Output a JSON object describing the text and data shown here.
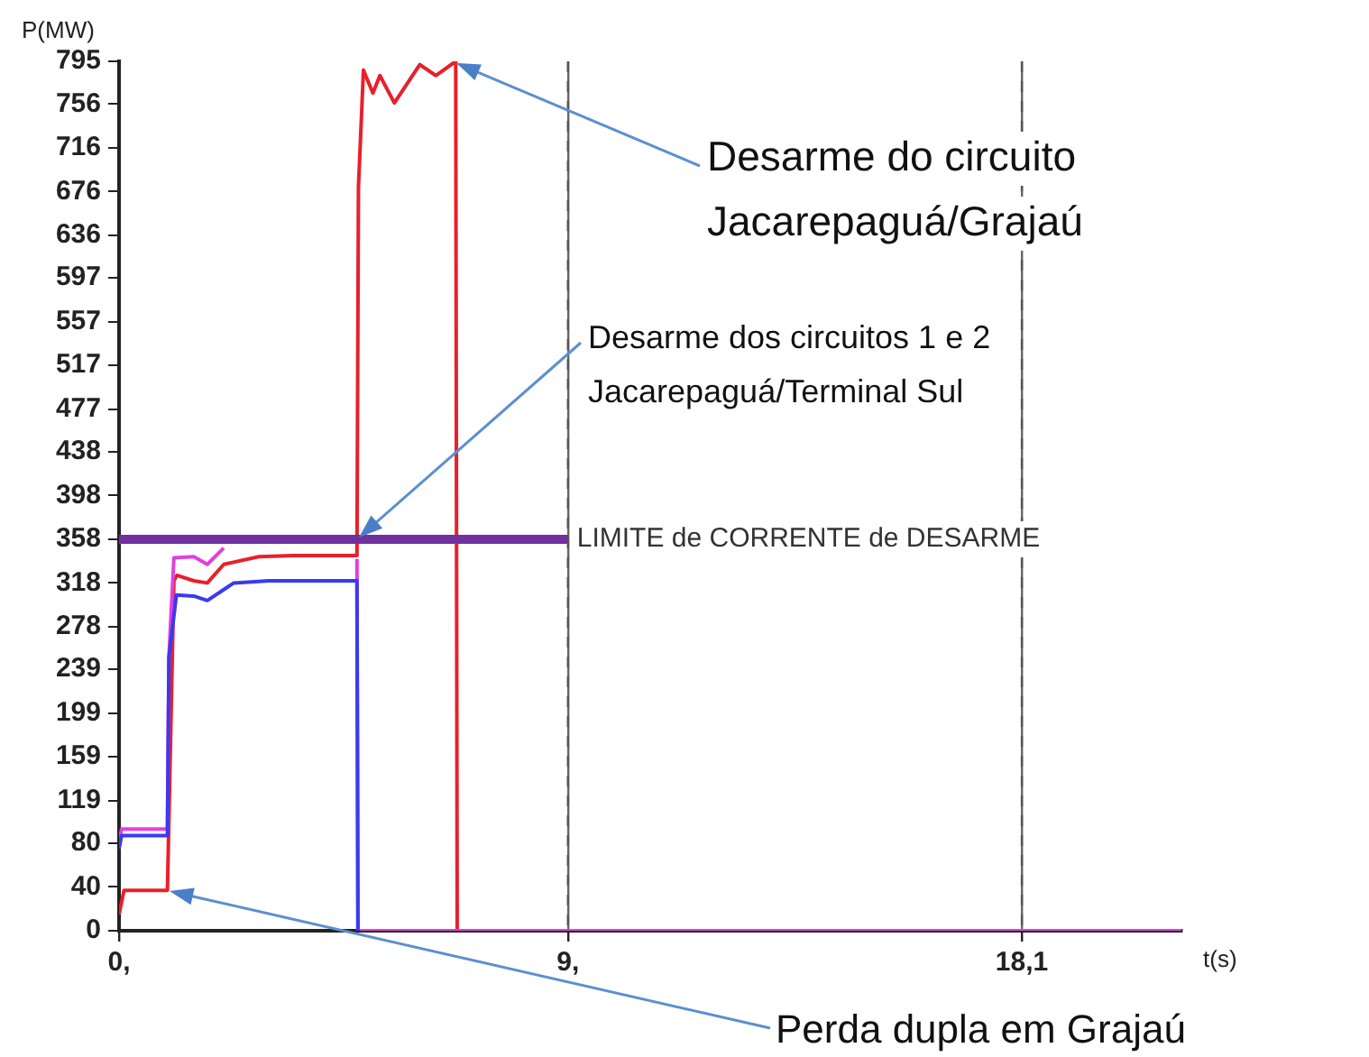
{
  "chart_data": {
    "type": "line",
    "xlabel": "t(s)",
    "ylabel": "P(MW)",
    "xlim": [
      0,
      21.3
    ],
    "ylim": [
      0,
      795
    ],
    "xticks": [
      {
        "value": 0,
        "label": "0,"
      },
      {
        "value": 9,
        "label": "9,"
      },
      {
        "value": 18.1,
        "label": "18,1"
      }
    ],
    "yticks": [
      0,
      40,
      80,
      119,
      159,
      199,
      239,
      278,
      318,
      358,
      398,
      438,
      477,
      517,
      557,
      597,
      636,
      676,
      716,
      756,
      795
    ],
    "grid": "x",
    "legend": false,
    "marker": "none",
    "line_style": "solid",
    "series": [
      {
        "color": "#e8202a",
        "x": [
          0,
          0.1,
          0.97,
          1.1,
          1.16,
          1.5,
          1.77,
          2.1,
          2.8,
          3.5,
          4.77,
          4.8,
          4.9,
          5.09,
          5.23,
          5.52,
          6.03,
          6.35,
          6.75,
          6.78,
          21.3
        ],
        "values": [
          15,
          37,
          37,
          320,
          325,
          320,
          318,
          335,
          342,
          343,
          343,
          680,
          787,
          766,
          782,
          757,
          792,
          782,
          795,
          0,
          0
        ]
      },
      {
        "color": "#e040e0",
        "x": [
          0,
          0.05,
          0.97,
          1.0,
          1.1,
          1.5,
          1.77,
          2.1,
          2.3,
          4.77,
          4.79,
          21.3
        ],
        "values": [
          80,
          93,
          93,
          250,
          341,
          342,
          335,
          350,
          null,
          340,
          0,
          0
        ]
      },
      {
        "color": "#3a3af0",
        "x": [
          0,
          0.05,
          0.97,
          1.0,
          1.15,
          1.5,
          1.77,
          2.3,
          3.0,
          4.77,
          4.79
        ],
        "values": [
          75,
          87,
          87,
          250,
          307,
          306,
          302,
          318,
          320,
          320,
          0
        ]
      },
      {
        "name": "LIMITE de CORRENTE de DESARME",
        "color": "#7030a0",
        "x": [
          0,
          9
        ],
        "values": [
          358,
          358
        ]
      }
    ],
    "annotations": [
      "Desarme do circuito\nJacarepaguá/Grajaú",
      "Desarme dos circuitos 1 e 2\nJacarepaguá/Terminal Sul",
      "Perda dupla em Grajaú"
    ]
  }
}
